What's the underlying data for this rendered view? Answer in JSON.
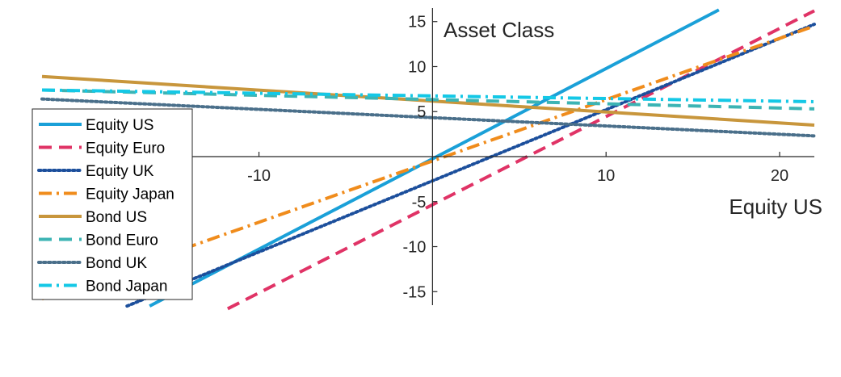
{
  "chart_data": {
    "type": "line",
    "xlabel": "Equity US",
    "ylabel": "Asset Class",
    "xlim": [
      -22.5,
      22
    ],
    "ylim": [
      -16.5,
      16.5
    ],
    "x_ticks": [
      -10,
      10,
      20
    ],
    "y_ticks": [
      -15,
      -10,
      -5,
      5,
      10,
      15
    ],
    "grid": false,
    "legend": {
      "placement": "left"
    },
    "series": [
      {
        "name": "Equity US",
        "color": "#1aa0d8",
        "dash": "solid",
        "x": [
          -16.3,
          16.5
        ],
        "y": [
          -16.6,
          16.3
        ]
      },
      {
        "name": "Equity Euro",
        "color": "#e03366",
        "dash": "dash",
        "x": [
          -11.8,
          22.0
        ],
        "y": [
          -16.9,
          16.2
        ]
      },
      {
        "name": "Equity UK",
        "color": "#1c4f9c",
        "dash": "dot",
        "x": [
          -17.6,
          22.0
        ],
        "y": [
          -16.6,
          14.7
        ]
      },
      {
        "name": "Equity Japan",
        "color": "#f08c1c",
        "dash": "dashdot",
        "x": [
          -22.5,
          22.0
        ],
        "y": [
          -15.8,
          14.5
        ]
      },
      {
        "name": "Bond US",
        "color": "#c8963c",
        "dash": "solid",
        "x": [
          -22.5,
          22.0
        ],
        "y": [
          8.9,
          3.5
        ]
      },
      {
        "name": "Bond Euro",
        "color": "#3cb4b4",
        "dash": "dash",
        "x": [
          -22.5,
          22.0
        ],
        "y": [
          7.4,
          5.3
        ]
      },
      {
        "name": "Bond UK",
        "color": "#4a6f8a",
        "dash": "dot",
        "x": [
          -22.5,
          22.0
        ],
        "y": [
          6.4,
          2.3
        ]
      },
      {
        "name": "Bond Japan",
        "color": "#14c8e6",
        "dash": "dashdot",
        "x": [
          -22.5,
          22.0
        ],
        "y": [
          7.4,
          6.1
        ]
      }
    ]
  }
}
